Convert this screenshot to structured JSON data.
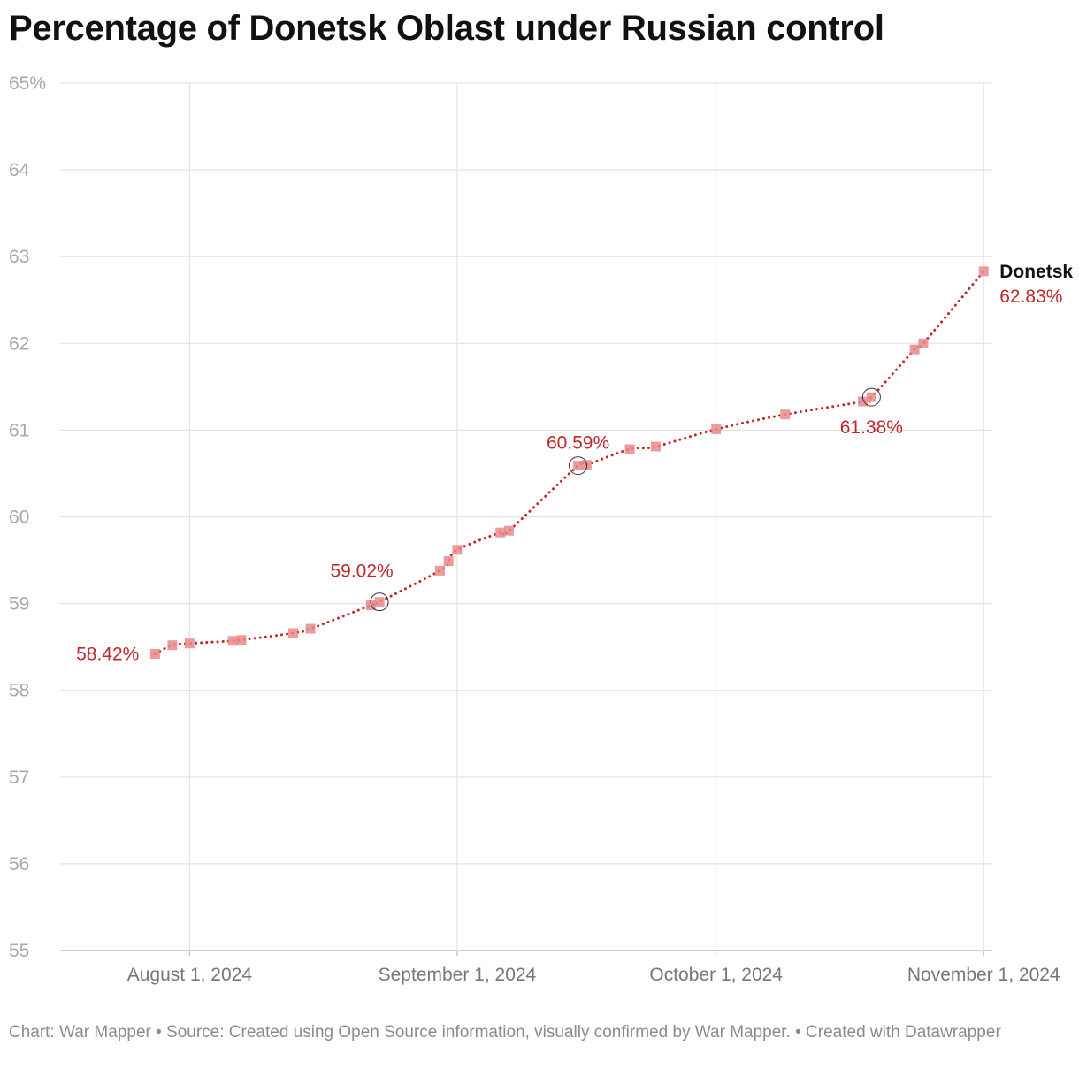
{
  "chart_data": {
    "type": "line",
    "title": "Percentage of Donetsk Oblast under Russian control",
    "y_unit_suffix": "%",
    "ylim": [
      55,
      65
    ],
    "y_ticks": [
      55,
      56,
      57,
      58,
      59,
      60,
      61,
      62,
      63,
      64,
      65
    ],
    "y_tick_labels": [
      "55",
      "56",
      "57",
      "58",
      "59",
      "60",
      "61",
      "62",
      "63",
      "64",
      "65%"
    ],
    "x_ticks": [
      "2024-08-01",
      "2024-09-01",
      "2024-10-01",
      "2024-11-01"
    ],
    "x_tick_labels": [
      "August 1, 2024",
      "September 1, 2024",
      "October 1, 2024",
      "November 1, 2024"
    ],
    "xlim": [
      "2024-07-17",
      "2024-11-02"
    ],
    "grid": true,
    "series": [
      {
        "name": "Donetsk",
        "color": "#c0282c",
        "marker_color": "#e88a8a",
        "points": [
          {
            "x": "2024-07-28",
            "y": 58.42
          },
          {
            "x": "2024-07-30",
            "y": 58.52
          },
          {
            "x": "2024-08-01",
            "y": 58.54
          },
          {
            "x": "2024-08-06",
            "y": 58.57
          },
          {
            "x": "2024-08-07",
            "y": 58.58
          },
          {
            "x": "2024-08-13",
            "y": 58.66
          },
          {
            "x": "2024-08-15",
            "y": 58.71
          },
          {
            "x": "2024-08-22",
            "y": 58.98
          },
          {
            "x": "2024-08-23",
            "y": 59.02
          },
          {
            "x": "2024-08-30",
            "y": 59.38
          },
          {
            "x": "2024-08-31",
            "y": 59.49
          },
          {
            "x": "2024-09-01",
            "y": 59.62
          },
          {
            "x": "2024-09-06",
            "y": 59.82
          },
          {
            "x": "2024-09-07",
            "y": 59.84
          },
          {
            "x": "2024-09-15",
            "y": 60.59
          },
          {
            "x": "2024-09-16",
            "y": 60.6
          },
          {
            "x": "2024-09-21",
            "y": 60.78
          },
          {
            "x": "2024-09-24",
            "y": 60.81
          },
          {
            "x": "2024-10-01",
            "y": 61.01
          },
          {
            "x": "2024-10-09",
            "y": 61.18
          },
          {
            "x": "2024-10-18",
            "y": 61.33
          },
          {
            "x": "2024-10-19",
            "y": 61.38
          },
          {
            "x": "2024-10-24",
            "y": 61.93
          },
          {
            "x": "2024-10-25",
            "y": 62.0
          },
          {
            "x": "2024-11-01",
            "y": 62.83
          }
        ]
      }
    ],
    "annotations": [
      {
        "x": "2024-07-28",
        "y": 58.42,
        "text": "58.42%",
        "circled": false,
        "position": "left"
      },
      {
        "x": "2024-08-23",
        "y": 59.02,
        "text": "59.02%",
        "circled": true,
        "position": "above-left"
      },
      {
        "x": "2024-09-15",
        "y": 60.59,
        "text": "60.59%",
        "circled": true,
        "position": "above"
      },
      {
        "x": "2024-10-19",
        "y": 61.38,
        "text": "61.38%",
        "circled": true,
        "position": "below"
      },
      {
        "x": "2024-11-01",
        "y": 62.83,
        "text": "62.83%",
        "circled": false,
        "position": "right-below"
      }
    ],
    "series_end_label": "Donetsk"
  },
  "footer": {
    "text": "Chart: War Mapper • Source: Created using Open Source information, visually confirmed by War Mapper. • Created with Datawrapper"
  }
}
